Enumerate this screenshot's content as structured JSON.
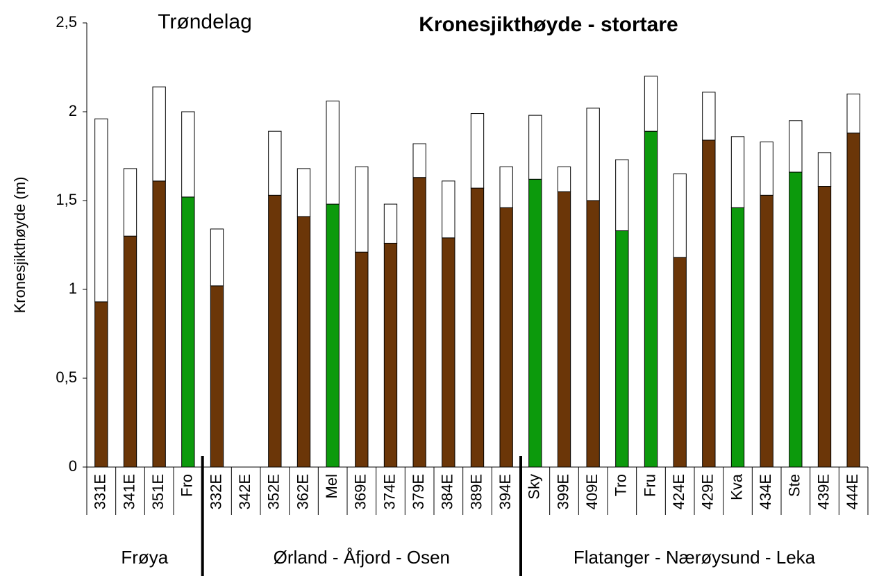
{
  "chart_data": {
    "type": "stacked_bar",
    "title": "Kronesjikthøyde - stortare",
    "annotation": "Trøndelag",
    "y_label": "Kronesjikthøyde  (m)",
    "groups": [
      {
        "label": "Frøya",
        "categories": [
          "331E",
          "341E",
          "351E",
          "Fro"
        ]
      },
      {
        "label": "Ørland - Åfjord - Osen",
        "categories": [
          "332E",
          "342E",
          "352E",
          "362E",
          "Mel",
          "369E",
          "374E",
          "379E",
          "384E",
          "389E",
          "394E"
        ]
      },
      {
        "label": "Flatanger - Nærøysund - Leka",
        "categories": [
          "Sky",
          "399E",
          "409E",
          "Tro",
          "Fru",
          "424E",
          "429E",
          "Kva",
          "434E",
          "Ste",
          "439E",
          "444E"
        ]
      }
    ],
    "series": [
      {
        "colors": [
          "#6b3608",
          "#6b3608",
          "#6b3608",
          "#0c9a0c",
          "#6b3608",
          "#6b3608",
          "#6b3608",
          "#6b3608",
          "#0c9a0c",
          "#6b3608",
          "#6b3608",
          "#6b3608",
          "#6b3608",
          "#6b3608",
          "#6b3608",
          "#0c9a0c",
          "#6b3608",
          "#6b3608",
          "#0c9a0c",
          "#0c9a0c",
          "#6b3608",
          "#6b3608",
          "#0c9a0c",
          "#6b3608",
          "#0c9a0c",
          "#6b3608",
          "#6b3608"
        ],
        "values": [
          0.93,
          1.3,
          1.61,
          1.52,
          1.02,
          null,
          1.53,
          1.41,
          1.48,
          1.21,
          1.26,
          1.63,
          1.29,
          1.57,
          1.46,
          1.62,
          1.55,
          1.5,
          1.33,
          1.89,
          1.18,
          1.84,
          1.46,
          1.53,
          1.66,
          1.58,
          1.88
        ]
      },
      {
        "color": "#ffffff",
        "values": [
          1.03,
          0.38,
          0.53,
          0.48,
          0.32,
          null,
          0.36,
          0.27,
          0.58,
          0.48,
          0.22,
          0.19,
          0.32,
          0.42,
          0.23,
          0.36,
          0.14,
          0.52,
          0.4,
          0.31,
          0.47,
          0.27,
          0.4,
          0.3,
          0.29,
          0.19,
          0.22
        ]
      }
    ],
    "ylim": [
      0,
      2.5
    ],
    "yticks": [
      0,
      {
        "value": 0.5,
        "label": "0,5"
      },
      1,
      {
        "value": 1.5,
        "label": "1,5"
      },
      2,
      {
        "value": 2.5,
        "label": "2,5"
      }
    ],
    "grid": false
  }
}
